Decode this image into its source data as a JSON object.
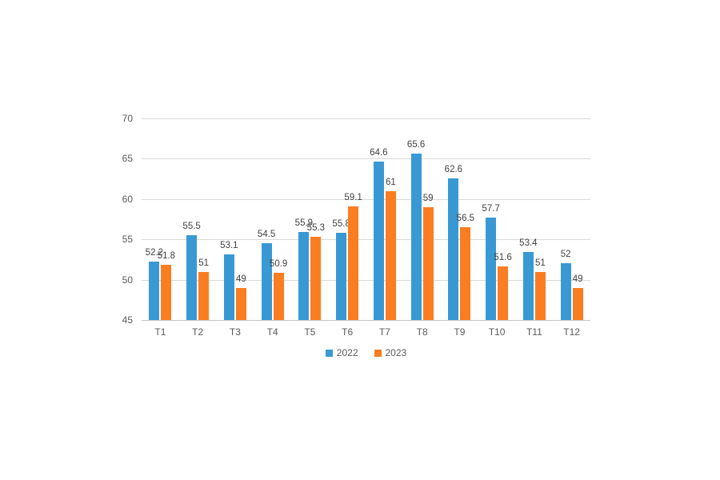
{
  "chart_data": {
    "type": "bar",
    "title": "",
    "categories": [
      "T1",
      "T2",
      "T3",
      "T4",
      "T5",
      "T6",
      "T7",
      "T8",
      "T9",
      "T10",
      "T11",
      "T12"
    ],
    "series": [
      {
        "name": "2022",
        "color": "#3899d4",
        "values": [
          52.2,
          55.5,
          53.1,
          54.5,
          55.9,
          55.8,
          64.6,
          65.6,
          62.6,
          57.7,
          53.4,
          52
        ]
      },
      {
        "name": "2023",
        "color": "#fb7d21",
        "values": [
          51.8,
          51,
          49,
          50.9,
          55.3,
          59.1,
          61,
          59,
          56.5,
          51.6,
          51,
          49
        ]
      }
    ],
    "data_labels": {
      "2022": [
        "52.2",
        "55.5",
        "53.1",
        "54.5",
        "55.9",
        "55.8",
        "64.6",
        "65.6",
        "62.6",
        "57.7",
        "53.4",
        "52"
      ],
      "2023": [
        "51.8",
        "51",
        "49",
        "50.9",
        "55.3",
        "59.1",
        "61",
        "59",
        "56.5",
        "51.6",
        "51",
        "49"
      ]
    },
    "xlabel": "",
    "ylabel": "",
    "ylim": [
      45,
      70
    ],
    "yticks": [
      "45",
      "50",
      "55",
      "60",
      "65",
      "70"
    ],
    "grid": true,
    "legend_position": "bottom",
    "legend_entries": [
      "2022",
      "2023"
    ]
  },
  "colors": {
    "background": "#ffffff",
    "gridline": "#d9d9d9",
    "axis_line": "#c6c6c6",
    "tick_text": "#595959",
    "data_label_text": "#404040",
    "series_2022": "#3899d4",
    "series_2023": "#fb7d21"
  }
}
